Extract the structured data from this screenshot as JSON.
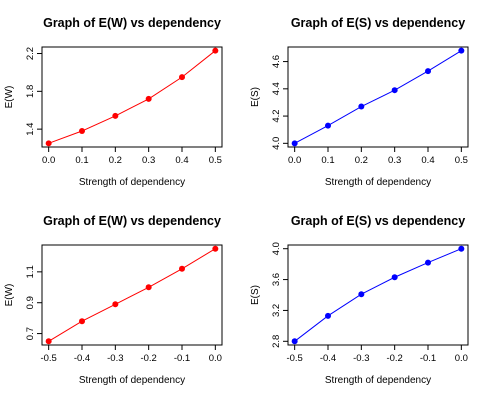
{
  "chart_data": [
    {
      "type": "line",
      "title": "Graph of E(W) vs dependency",
      "xlabel": "Strength of dependency",
      "ylabel": "E(W)",
      "x": [
        0.0,
        0.1,
        0.2,
        0.3,
        0.4,
        0.5
      ],
      "series": [
        {
          "values": [
            1.25,
            1.38,
            1.54,
            1.72,
            1.95,
            2.23
          ]
        }
      ],
      "xticks": [
        "0.0",
        "0.1",
        "0.2",
        "0.3",
        "0.4",
        "0.5"
      ],
      "yticks": [
        "1.4",
        "1.8",
        "2.2"
      ],
      "ytick_values": [
        1.4,
        1.8,
        2.2
      ],
      "xlim": [
        -0.02,
        0.52
      ],
      "ylim": [
        1.211,
        2.269
      ],
      "color": "#ff0000"
    },
    {
      "type": "line",
      "title": "Graph of E(S) vs dependency",
      "xlabel": "Strength of dependency",
      "ylabel": "E(S)",
      "x": [
        0.0,
        0.1,
        0.2,
        0.3,
        0.4,
        0.5
      ],
      "series": [
        {
          "values": [
            4.0,
            4.13,
            4.27,
            4.39,
            4.53,
            4.68
          ]
        }
      ],
      "xticks": [
        "0.0",
        "0.1",
        "0.2",
        "0.3",
        "0.4",
        "0.5"
      ],
      "yticks": [
        "4.0",
        "4.2",
        "4.4",
        "4.6"
      ],
      "ytick_values": [
        4.0,
        4.2,
        4.4,
        4.6
      ],
      "xlim": [
        -0.02,
        0.52
      ],
      "ylim": [
        3.973,
        4.707
      ],
      "color": "#0000ff"
    },
    {
      "type": "line",
      "title": "Graph of E(W) vs dependency",
      "xlabel": "Strength of dependency",
      "ylabel": "E(W)",
      "x": [
        -0.5,
        -0.4,
        -0.3,
        -0.2,
        -0.1,
        0.0
      ],
      "series": [
        {
          "values": [
            0.65,
            0.78,
            0.89,
            1.0,
            1.12,
            1.25
          ]
        }
      ],
      "xticks": [
        "-0.5",
        "-0.4",
        "-0.3",
        "-0.2",
        "-0.1",
        "0.0"
      ],
      "yticks": [
        "0.7",
        "0.9",
        "1.1"
      ],
      "ytick_values": [
        0.7,
        0.9,
        1.1
      ],
      "xlim": [
        -0.52,
        0.02
      ],
      "ylim": [
        0.626,
        1.274
      ],
      "color": "#ff0000"
    },
    {
      "type": "line",
      "title": "Graph of E(S) vs dependency",
      "xlabel": "Strength of dependency",
      "ylabel": "E(S)",
      "x": [
        -0.5,
        -0.4,
        -0.3,
        -0.2,
        -0.1,
        0.0
      ],
      "series": [
        {
          "values": [
            2.8,
            3.13,
            3.41,
            3.63,
            3.82,
            4.0
          ]
        }
      ],
      "xticks": [
        "-0.5",
        "-0.4",
        "-0.3",
        "-0.2",
        "-0.1",
        "0.0"
      ],
      "yticks": [
        "2.8",
        "3.2",
        "3.6",
        "4.0"
      ],
      "ytick_values": [
        2.8,
        3.2,
        3.6,
        4.0
      ],
      "xlim": [
        -0.52,
        0.02
      ],
      "ylim": [
        2.752,
        4.048
      ],
      "color": "#0000ff"
    }
  ]
}
